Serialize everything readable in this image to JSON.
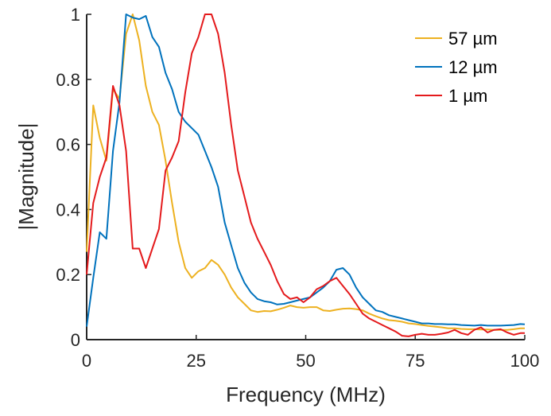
{
  "chart_data": {
    "type": "line",
    "title": "",
    "xlabel": "Frequency (MHz)",
    "ylabel": "|Magnitude|",
    "xlim": [
      0,
      100
    ],
    "ylim": [
      0,
      1
    ],
    "xticks": [
      "0",
      "25",
      "50",
      "75",
      "100"
    ],
    "yticks": [
      "0",
      "0.2",
      "0.4",
      "0.6",
      "0.8",
      "1"
    ],
    "xtick_values": [
      0,
      25,
      50,
      75,
      100
    ],
    "ytick_values": [
      0,
      0.2,
      0.4,
      0.6,
      0.8,
      1
    ],
    "grid": false,
    "legend_position": "top-right",
    "series": [
      {
        "name": "57 µm",
        "color": "#EDB120",
        "x": [
          0,
          1.5,
          3,
          4.5,
          6,
          7.5,
          9,
          10.5,
          12,
          13.5,
          15,
          16.5,
          18,
          19.5,
          21,
          22.5,
          24,
          25.5,
          27,
          28.5,
          30,
          31.5,
          33,
          34.5,
          36,
          37.5,
          39,
          40.5,
          42,
          43.5,
          45,
          46.5,
          48,
          49.5,
          51,
          52.5,
          54,
          55.5,
          57,
          58.5,
          60,
          61.5,
          63,
          64.5,
          66,
          67.5,
          69,
          70.5,
          72,
          73.5,
          75,
          76.5,
          78,
          79.5,
          81,
          82.5,
          84,
          85.5,
          87,
          88.5,
          90,
          91.5,
          93,
          94.5,
          96,
          97.5,
          99,
          100
        ],
        "y": [
          0.27,
          0.72,
          0.62,
          0.55,
          0.77,
          0.74,
          0.94,
          1.0,
          0.92,
          0.78,
          0.7,
          0.66,
          0.55,
          0.42,
          0.3,
          0.22,
          0.19,
          0.21,
          0.22,
          0.245,
          0.23,
          0.2,
          0.16,
          0.13,
          0.11,
          0.09,
          0.085,
          0.088,
          0.087,
          0.092,
          0.098,
          0.105,
          0.1,
          0.098,
          0.1,
          0.1,
          0.09,
          0.088,
          0.092,
          0.095,
          0.096,
          0.094,
          0.09,
          0.08,
          0.072,
          0.065,
          0.06,
          0.058,
          0.055,
          0.05,
          0.048,
          0.045,
          0.042,
          0.04,
          0.038,
          0.035,
          0.035,
          0.033,
          0.032,
          0.032,
          0.031,
          0.031,
          0.03,
          0.03,
          0.03,
          0.032,
          0.035,
          0.035
        ]
      },
      {
        "name": "12 µm",
        "color": "#0072BD",
        "x": [
          0,
          1.5,
          3,
          4.5,
          6,
          7.5,
          9,
          10.5,
          12,
          13.5,
          15,
          16.5,
          18,
          19.5,
          21,
          22.5,
          24,
          25.5,
          27,
          28.5,
          30,
          31.5,
          33,
          34.5,
          36,
          37.5,
          39,
          40.5,
          42,
          43.5,
          45,
          46.5,
          48,
          49.5,
          51,
          52.5,
          54,
          55.5,
          57,
          58.5,
          60,
          61.5,
          63,
          64.5,
          66,
          67.5,
          69,
          70.5,
          72,
          73.5,
          75,
          76.5,
          78,
          79.5,
          81,
          82.5,
          84,
          85.5,
          87,
          88.5,
          90,
          91.5,
          93,
          94.5,
          96,
          97.5,
          99,
          100
        ],
        "y": [
          0.04,
          0.19,
          0.33,
          0.31,
          0.58,
          0.73,
          1.0,
          0.99,
          0.985,
          0.995,
          0.93,
          0.9,
          0.82,
          0.77,
          0.7,
          0.67,
          0.65,
          0.63,
          0.58,
          0.53,
          0.47,
          0.36,
          0.29,
          0.22,
          0.175,
          0.145,
          0.125,
          0.118,
          0.115,
          0.108,
          0.11,
          0.115,
          0.12,
          0.125,
          0.13,
          0.145,
          0.16,
          0.18,
          0.215,
          0.22,
          0.2,
          0.16,
          0.13,
          0.11,
          0.09,
          0.085,
          0.075,
          0.07,
          0.065,
          0.06,
          0.055,
          0.05,
          0.05,
          0.048,
          0.048,
          0.047,
          0.047,
          0.045,
          0.044,
          0.043,
          0.045,
          0.043,
          0.043,
          0.043,
          0.044,
          0.045,
          0.048,
          0.047
        ]
      },
      {
        "name": "1 µm",
        "color": "#E41A1C",
        "x": [
          0,
          1.5,
          3,
          4.5,
          6,
          7.5,
          9,
          10.5,
          12,
          13.5,
          15,
          16.5,
          18,
          19.5,
          21,
          22.5,
          24,
          25.5,
          27,
          28.5,
          30,
          31.5,
          33,
          34.5,
          36,
          37.5,
          39,
          40.5,
          42,
          43.5,
          45,
          46.5,
          48,
          49.5,
          51,
          52.5,
          54,
          55.5,
          57,
          58.5,
          60,
          61.5,
          63,
          64.5,
          66,
          67.5,
          69,
          70.5,
          72,
          73.5,
          75,
          76.5,
          78,
          79.5,
          81,
          82.5,
          84,
          85.5,
          87,
          88.5,
          90,
          91.5,
          93,
          94.5,
          96,
          97.5,
          99,
          100
        ],
        "y": [
          0.2,
          0.42,
          0.5,
          0.56,
          0.78,
          0.72,
          0.58,
          0.28,
          0.28,
          0.22,
          0.28,
          0.34,
          0.52,
          0.56,
          0.61,
          0.76,
          0.88,
          0.93,
          1.0,
          1.0,
          0.94,
          0.82,
          0.66,
          0.52,
          0.44,
          0.36,
          0.31,
          0.27,
          0.23,
          0.18,
          0.14,
          0.125,
          0.13,
          0.115,
          0.13,
          0.155,
          0.165,
          0.18,
          0.19,
          0.165,
          0.14,
          0.11,
          0.08,
          0.065,
          0.055,
          0.045,
          0.035,
          0.025,
          0.012,
          0.01,
          0.015,
          0.018,
          0.015,
          0.015,
          0.018,
          0.022,
          0.03,
          0.02,
          0.015,
          0.03,
          0.038,
          0.022,
          0.03,
          0.032,
          0.022,
          0.015,
          0.02,
          0.02
        ]
      }
    ]
  }
}
